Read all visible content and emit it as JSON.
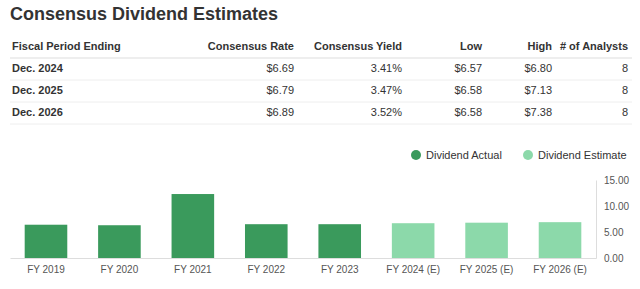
{
  "header": {
    "title": "Consensus Dividend Estimates"
  },
  "table": {
    "columns": [
      "Fiscal Period Ending",
      "Consensus Rate",
      "Consensus Yield",
      "Low",
      "High",
      "# of Analysts"
    ],
    "rows": [
      [
        "Dec. 2024",
        "$6.69",
        "3.41%",
        "$6.57",
        "$6.80",
        "8"
      ],
      [
        "Dec. 2025",
        "$6.79",
        "3.47%",
        "$6.58",
        "$7.13",
        "8"
      ],
      [
        "Dec. 2026",
        "$6.89",
        "3.52%",
        "$6.58",
        "$7.38",
        "8"
      ]
    ]
  },
  "chart_data": {
    "type": "bar",
    "categories": [
      "FY 2019",
      "FY 2020",
      "FY 2021",
      "FY 2022",
      "FY 2023",
      "FY 2024 (E)",
      "FY 2025 (E)",
      "FY 2026 (E)"
    ],
    "series": [
      {
        "name": "Dividend Actual",
        "color": "#3a9a5c",
        "values": [
          6.4,
          6.3,
          12.3,
          6.5,
          6.5,
          null,
          null,
          null
        ]
      },
      {
        "name": "Dividend Estimate",
        "color": "#8cd9aa",
        "values": [
          null,
          null,
          null,
          null,
          null,
          6.69,
          6.79,
          6.89
        ]
      }
    ],
    "ylim": [
      0,
      15
    ],
    "yticks": [
      {
        "value": 0,
        "label": "0.00"
      },
      {
        "value": 5,
        "label": "5.00"
      },
      {
        "value": 10,
        "label": "10.00"
      },
      {
        "value": 15,
        "label": "15.00"
      }
    ],
    "grid": false,
    "legend": "top-right"
  }
}
